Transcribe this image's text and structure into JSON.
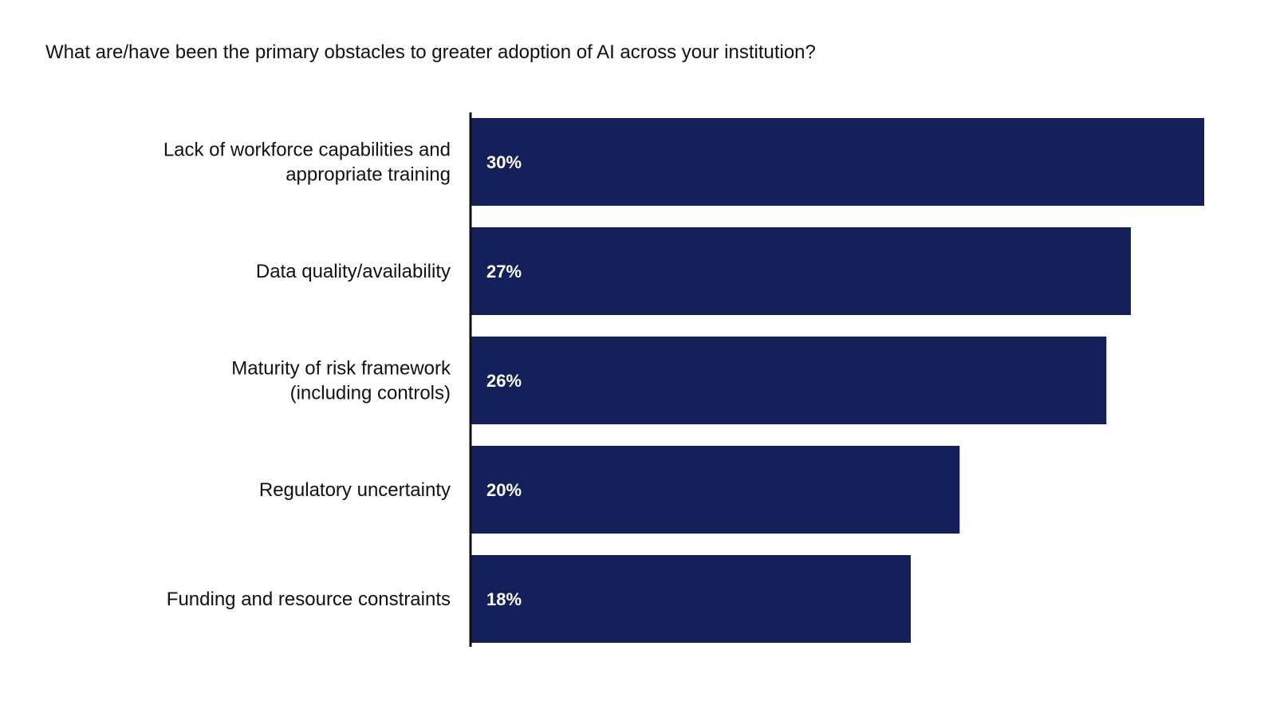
{
  "colors": {
    "bar": "#13205a",
    "axis": "#111111",
    "background": "#ffffff"
  },
  "chart_data": {
    "type": "bar",
    "orientation": "horizontal",
    "title": "What are/have been the primary obstacles to greater adoption of AI across your institution?",
    "xlabel": "",
    "ylabel": "",
    "categories": [
      [
        "Lack of workforce capabilities and",
        "appropriate training"
      ],
      [
        "Data quality/availability"
      ],
      [
        "Maturity of risk framework",
        "(including controls)"
      ],
      [
        "Regulatory uncertainty"
      ],
      [
        "Funding and resource constraints"
      ]
    ],
    "values": [
      30,
      27,
      26,
      20,
      18
    ],
    "value_labels": [
      "30%",
      "27%",
      "26%",
      "20%",
      "18%"
    ],
    "xlim": [
      0,
      30
    ],
    "grid": false,
    "legend": "none"
  }
}
